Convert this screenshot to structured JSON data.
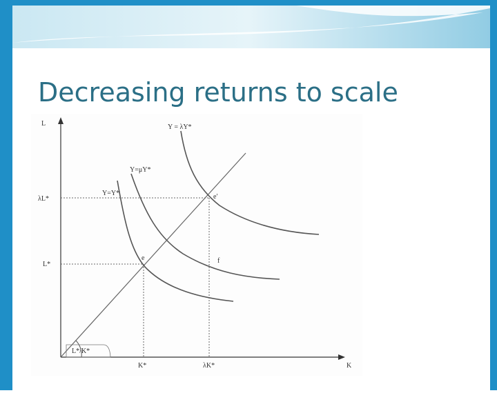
{
  "title": "Decreasing returns to scale",
  "diagram": {
    "axis_labels": {
      "y": "L",
      "x": "K"
    },
    "y_ticks": [
      "λL*",
      "L*"
    ],
    "x_ticks": [
      "K*",
      "λK*"
    ],
    "curves": [
      "Y = λY*",
      "Y=μY*",
      "Y=Y*"
    ],
    "points": [
      "e",
      "e'",
      "f"
    ],
    "angle_label": "L*/K*"
  }
}
